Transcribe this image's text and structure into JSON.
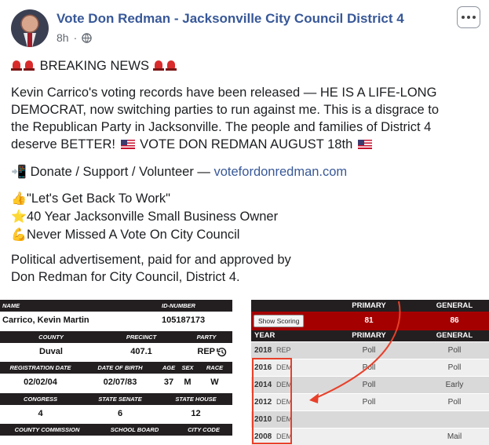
{
  "post": {
    "page_name": "Vote Don Redman - Jacksonville City Council District 4",
    "time": "8h",
    "breaking": "BREAKING NEWS",
    "body_lines": [
      "Kevin Carrico's voting records have been released — HE IS A LIFE-LONG",
      "DEMOCRAT, now switching parties to run against me. This is a disgrace to",
      "the Republican Party in Jacksonville. The people and families of District 4"
    ],
    "body_line4": "deserve BETTER!",
    "body_line4_b": "VOTE DON REDMAN AUGUST 18th",
    "donate_text": "Donate / Support / Volunteer —",
    "donate_link": "votefordonredman.com",
    "bullets": [
      {
        "icon": "thumbs-up-icon",
        "glyph": "👍",
        "text": "\"Let's Get Back To Work\""
      },
      {
        "icon": "star-icon",
        "glyph": "⭐",
        "text": "40 Year Jacksonville Small Business Owner"
      },
      {
        "icon": "flexed-biceps-icon",
        "glyph": "💪",
        "text": "Never Missed A Vote On City Council"
      }
    ],
    "disclaimer": [
      "Political advertisement, paid for and approved by",
      "Don Redman for City Council, District 4."
    ]
  },
  "record": {
    "labels": {
      "name": "NAME",
      "id_number": "ID-NUMBER",
      "county": "COUNTY",
      "precinct": "PRECINCT",
      "party": "PARTY",
      "registration_date": "REGISTRATION DATE",
      "date_of_birth": "DATE OF BIRTH",
      "age": "AGE",
      "sex": "SEX",
      "race": "RACE",
      "congress": "CONGRESS",
      "state_senate": "STATE SENATE",
      "state_house": "STATE HOUSE",
      "county_commission": "COUNTY COMMISSION",
      "school_board": "SCHOOL BOARD",
      "city_code": "CITY CODE"
    },
    "values": {
      "name": "Carrico, Kevin Martin",
      "id_number": "105187173",
      "county": "Duval",
      "precinct": "407.1",
      "party": "REP",
      "registration_date": "02/02/04",
      "date_of_birth": "02/07/83",
      "age": "37",
      "sex": "M",
      "race": "W",
      "congress": "4",
      "state_senate": "6",
      "state_house": "12"
    }
  },
  "history": {
    "primary_label": "PRIMARY",
    "general_label": "GENERAL",
    "show_scoring": "Show Scoring",
    "primary_score": "81",
    "general_score": "86",
    "year_label": "YEAR",
    "rows": [
      {
        "year": "2018",
        "party": "REP",
        "primary": "Poll",
        "general": "Poll"
      },
      {
        "year": "2016",
        "party": "DEM",
        "primary": "Poll",
        "general": "Poll"
      },
      {
        "year": "2014",
        "party": "DEM",
        "primary": "Poll",
        "general": "Early"
      },
      {
        "year": "2012",
        "party": "DEM",
        "primary": "Poll",
        "general": "Poll"
      },
      {
        "year": "2010",
        "party": "DEM",
        "primary": "",
        "general": ""
      },
      {
        "year": "2008",
        "party": "DEM",
        "primary": "",
        "general": "Mail"
      }
    ]
  },
  "colors": {
    "link": "#385898",
    "score_bar": "#a50000",
    "highlight": "#e8402a",
    "table_header": "#231f20"
  }
}
